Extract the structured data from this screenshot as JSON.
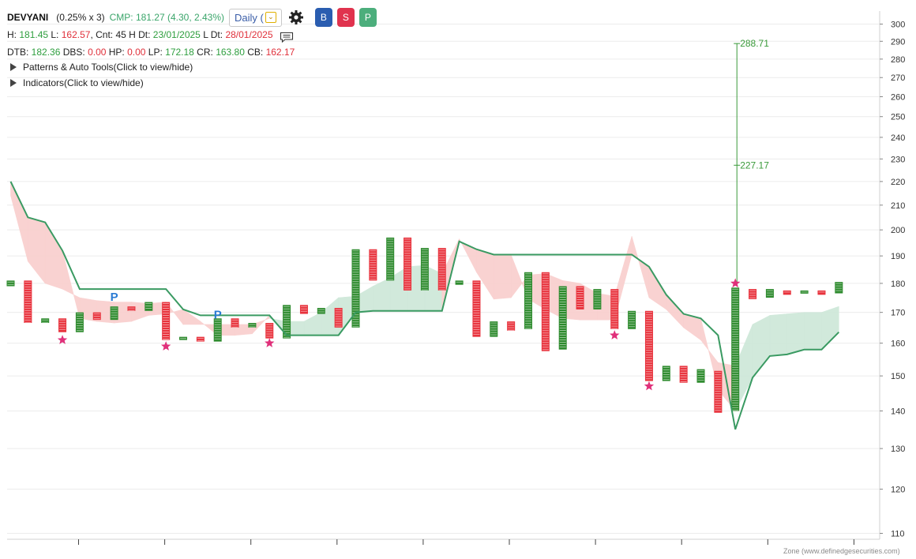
{
  "header": {
    "symbol": "DEVYANI",
    "box_info": "(0.25% x 3)",
    "cmp_label": "CMP: 181.27 (4.30, 2.43%)",
    "timeframe": "Daily (",
    "buy_label": "B",
    "sell_label": "S",
    "p_label": "P"
  },
  "stats1": {
    "h_label": "H: ",
    "h_value": "181.45",
    "l_label": " L: ",
    "l_value": "162.57",
    "cnt_label": ", Cnt: 45 H Dt: ",
    "hdt_value": "23/01/2025",
    "ldt_label": " L Dt: ",
    "ldt_value": "28/01/2025"
  },
  "stats2": {
    "dtb_label": "DTB: ",
    "dtb_value": "182.36",
    "dbs_label": " DBS: ",
    "dbs_value": "0.00",
    "hp_label": " HP: ",
    "hp_value": "0.00",
    "lp_label": " LP: ",
    "lp_value": "172.18",
    "cr_label": " CR: ",
    "cr_value": "163.80",
    "cb_label": " CB: ",
    "cb_value": "162.17"
  },
  "toggles": {
    "patterns": "Patterns & Auto Tools(Click to view/hide)",
    "indicators": "Indicators(Click to view/hide)"
  },
  "credit": "Zone (www.definedgesecurities.com)",
  "colors": {
    "x_column": "#2e8b2e",
    "o_column": "#e8323c",
    "line": "#3a9a62",
    "cloud_green": "#cfe8da",
    "cloud_red": "#f9d0cf",
    "star": "#e0307a",
    "p_marker": "#2a7bd4",
    "target": "#3a9a3a"
  },
  "chart_data": {
    "type": "point-and-figure",
    "y_scale": "log",
    "ylim": [
      110,
      300
    ],
    "y_ticks": [
      110,
      120,
      130,
      140,
      150,
      160,
      170,
      180,
      190,
      200,
      210,
      220,
      230,
      240,
      250,
      260,
      270,
      280,
      290,
      300
    ],
    "columns": [
      {
        "type": "X",
        "low": 179,
        "high": 181
      },
      {
        "type": "O",
        "low": 166.5,
        "high": 181
      },
      {
        "type": "X",
        "low": 166.5,
        "high": 168
      },
      {
        "type": "O",
        "low": 163.5,
        "high": 168
      },
      {
        "type": "X",
        "low": 163.5,
        "high": 170
      },
      {
        "type": "O",
        "low": 167.5,
        "high": 170
      },
      {
        "type": "X",
        "low": 167.5,
        "high": 172
      },
      {
        "type": "O",
        "low": 170.5,
        "high": 172
      },
      {
        "type": "X",
        "low": 170.5,
        "high": 173.5
      },
      {
        "type": "O",
        "low": 161,
        "high": 173.5
      },
      {
        "type": "X",
        "low": 161,
        "high": 162
      },
      {
        "type": "O",
        "low": 160.5,
        "high": 162
      },
      {
        "type": "X",
        "low": 160.5,
        "high": 168
      },
      {
        "type": "O",
        "low": 165,
        "high": 168
      },
      {
        "type": "X",
        "low": 165,
        "high": 166.5
      },
      {
        "type": "O",
        "low": 161.5,
        "high": 166.5
      },
      {
        "type": "X",
        "low": 161.5,
        "high": 172.5
      },
      {
        "type": "O",
        "low": 169.5,
        "high": 172.5
      },
      {
        "type": "X",
        "low": 169.5,
        "high": 171.5
      },
      {
        "type": "O",
        "low": 165,
        "high": 171.5
      },
      {
        "type": "X",
        "low": 165,
        "high": 192.5
      },
      {
        "type": "O",
        "low": 181,
        "high": 192.5
      },
      {
        "type": "X",
        "low": 181,
        "high": 197
      },
      {
        "type": "O",
        "low": 177.5,
        "high": 197
      },
      {
        "type": "X",
        "low": 177.5,
        "high": 193
      },
      {
        "type": "O",
        "low": 177.5,
        "high": 193
      },
      {
        "type": "X",
        "low": 179.5,
        "high": 181
      },
      {
        "type": "O",
        "low": 162,
        "high": 181
      },
      {
        "type": "X",
        "low": 162,
        "high": 167
      },
      {
        "type": "O",
        "low": 164,
        "high": 167
      },
      {
        "type": "X",
        "low": 164.5,
        "high": 184
      },
      {
        "type": "O",
        "low": 157.5,
        "high": 184
      },
      {
        "type": "X",
        "low": 158,
        "high": 179
      },
      {
        "type": "O",
        "low": 171,
        "high": 179
      },
      {
        "type": "X",
        "low": 171,
        "high": 178
      },
      {
        "type": "O",
        "low": 164.5,
        "high": 178
      },
      {
        "type": "X",
        "low": 164.5,
        "high": 170.5
      },
      {
        "type": "O",
        "low": 148.5,
        "high": 170.5
      },
      {
        "type": "X",
        "low": 148.5,
        "high": 153
      },
      {
        "type": "O",
        "low": 148,
        "high": 153
      },
      {
        "type": "X",
        "low": 148,
        "high": 152
      },
      {
        "type": "O",
        "low": 139.5,
        "high": 151.5
      },
      {
        "type": "X",
        "low": 140,
        "high": 178.5
      },
      {
        "type": "O",
        "low": 174.5,
        "high": 178
      },
      {
        "type": "X",
        "low": 175,
        "high": 178
      },
      {
        "type": "O",
        "low": 176,
        "high": 177.5
      },
      {
        "type": "X",
        "low": 176.5,
        "high": 177.5
      },
      {
        "type": "O",
        "low": 176,
        "high": 177.5
      },
      {
        "type": "X",
        "low": 176.5,
        "high": 180.5
      }
    ],
    "line": [
      220,
      205,
      203,
      192,
      178,
      178,
      178,
      178,
      178,
      178,
      171,
      169,
      169,
      169,
      169,
      169,
      162.5,
      162.5,
      162.5,
      162.5,
      170,
      170.5,
      170.5,
      170.5,
      170.5,
      170.5,
      195.5,
      192.5,
      190.5,
      190.5,
      190.5,
      190.5,
      190.5,
      190.5,
      190.5,
      190.5,
      190.5,
      186,
      176,
      169.5,
      168,
      162.5,
      135,
      149.5,
      156,
      156.5,
      158,
      158,
      163.5
    ],
    "cloud_top": [
      214,
      188,
      180,
      178,
      175,
      174,
      173.5,
      173.5,
      173,
      173.5,
      166,
      166,
      166,
      166,
      166,
      168,
      167,
      167,
      170,
      175,
      175.5,
      179,
      182,
      186,
      186.5,
      183.5,
      196.5,
      184,
      174.5,
      175,
      183,
      183.5,
      181,
      180,
      176.5,
      175.5,
      197.5,
      175,
      171,
      165,
      161,
      154,
      153,
      166,
      169,
      169.5,
      170,
      170,
      172
    ],
    "cloud_bottom": [
      220,
      205,
      203,
      192,
      168,
      167,
      166.5,
      167,
      169,
      169.5,
      171,
      167,
      162.5,
      162.5,
      163,
      169,
      162.5,
      162.5,
      162.5,
      162.5,
      170,
      170.5,
      170.5,
      170.5,
      170.5,
      170.5,
      195.5,
      192.5,
      190.5,
      190.5,
      174.5,
      171,
      168,
      167.5,
      167.5,
      167.5,
      190.5,
      186,
      176,
      169.5,
      168,
      146,
      140,
      149.5,
      156,
      156.5,
      158,
      158,
      163.5
    ],
    "cloud_color_index": [
      "r",
      "r",
      "r",
      "r",
      "r",
      "r",
      "r",
      "r",
      "r",
      "r",
      "r",
      "r",
      "r",
      "r",
      "r",
      "g",
      "g",
      "g",
      "g",
      "g",
      "g",
      "g",
      "g",
      "g",
      "g",
      "r",
      "r",
      "r",
      "r",
      "r",
      "r",
      "r",
      "r",
      "r",
      "r",
      "r",
      "r",
      "r",
      "r",
      "r",
      "r",
      "r",
      "g",
      "g",
      "g",
      "g",
      "g",
      "g",
      "g"
    ],
    "stars": [
      {
        "col": 3,
        "value": 161
      },
      {
        "col": 9,
        "value": 159
      },
      {
        "col": 15,
        "value": 160
      },
      {
        "col": 35,
        "value": 162.5
      },
      {
        "col": 37,
        "value": 147
      },
      {
        "col": 42,
        "value": 180
      }
    ],
    "p_markers": [
      {
        "col": 6,
        "value": 175.5,
        "label": "P"
      },
      {
        "col": 12,
        "value": 169.5,
        "label": "P"
      }
    ],
    "targets": {
      "col": 42,
      "from": 180,
      "to": 288.71,
      "labels": [
        {
          "value": 288.71,
          "text": "288.71"
        },
        {
          "value": 227.17,
          "text": "227.17"
        }
      ]
    },
    "xlabel": "",
    "ylabel": "",
    "grid": true
  }
}
